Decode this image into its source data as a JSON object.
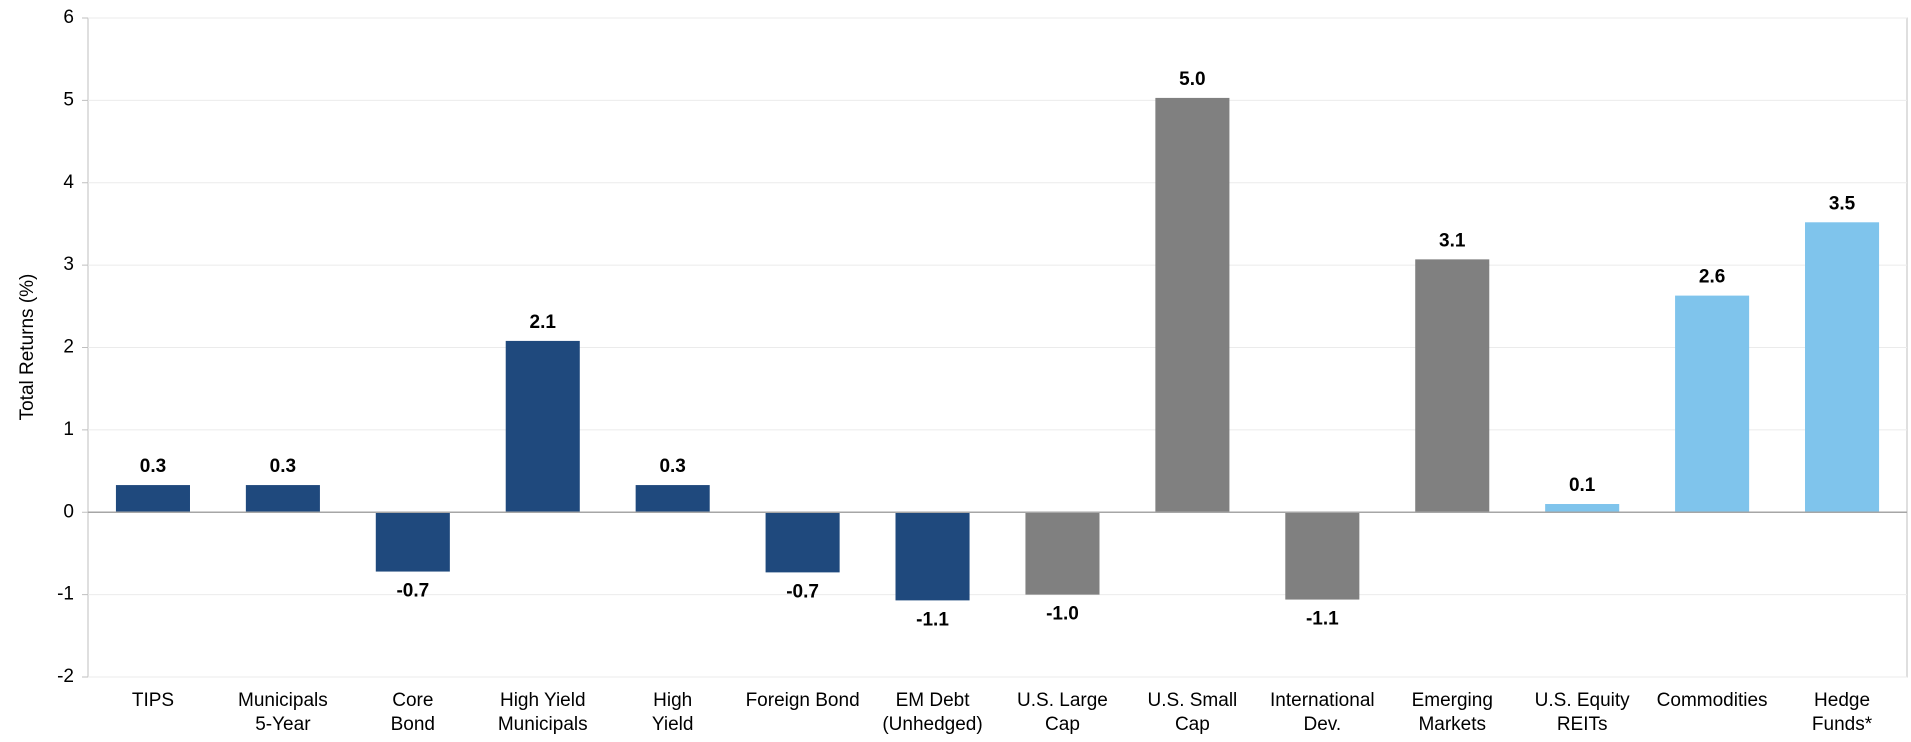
{
  "chart_data": {
    "type": "bar",
    "y_label": "Total Returns (%)",
    "categories": [
      [
        "TIPS"
      ],
      [
        "Municipals",
        "5-Year"
      ],
      [
        "Core",
        "Bond"
      ],
      [
        "High Yield",
        "Municipals"
      ],
      [
        "High",
        "Yield"
      ],
      [
        "Foreign Bond"
      ],
      [
        "EM Debt",
        "(Unhedged)"
      ],
      [
        "U.S. Large",
        "Cap"
      ],
      [
        "U.S. Small",
        "Cap"
      ],
      [
        "International",
        "Dev."
      ],
      [
        "Emerging",
        "Markets"
      ],
      [
        "U.S. Equity",
        "REITs"
      ],
      [
        "Commodities"
      ],
      [
        "Hedge",
        "Funds*"
      ]
    ],
    "values": [
      0.33,
      0.33,
      -0.72,
      2.08,
      0.33,
      -0.73,
      -1.07,
      -1.0,
      5.03,
      -1.06,
      3.07,
      0.1,
      2.63,
      3.52
    ],
    "value_labels": [
      "0.3",
      "0.3",
      "-0.7",
      "2.1",
      "0.3",
      "-0.7",
      "-1.1",
      "-1.0",
      "5.0",
      "-1.1",
      "3.1",
      "0.1",
      "2.6",
      "3.5"
    ],
    "colors": [
      "#1f497d",
      "#1f497d",
      "#1f497d",
      "#1f497d",
      "#1f497d",
      "#1f497d",
      "#1f497d",
      "#808080",
      "#808080",
      "#808080",
      "#808080",
      "#7fc4ec",
      "#7fc4ec",
      "#7fc4ec"
    ],
    "ylim": [
      -2,
      6
    ],
    "yticks": [
      -2,
      -1,
      0,
      1,
      2,
      3,
      4,
      5,
      6
    ],
    "grid": true
  }
}
